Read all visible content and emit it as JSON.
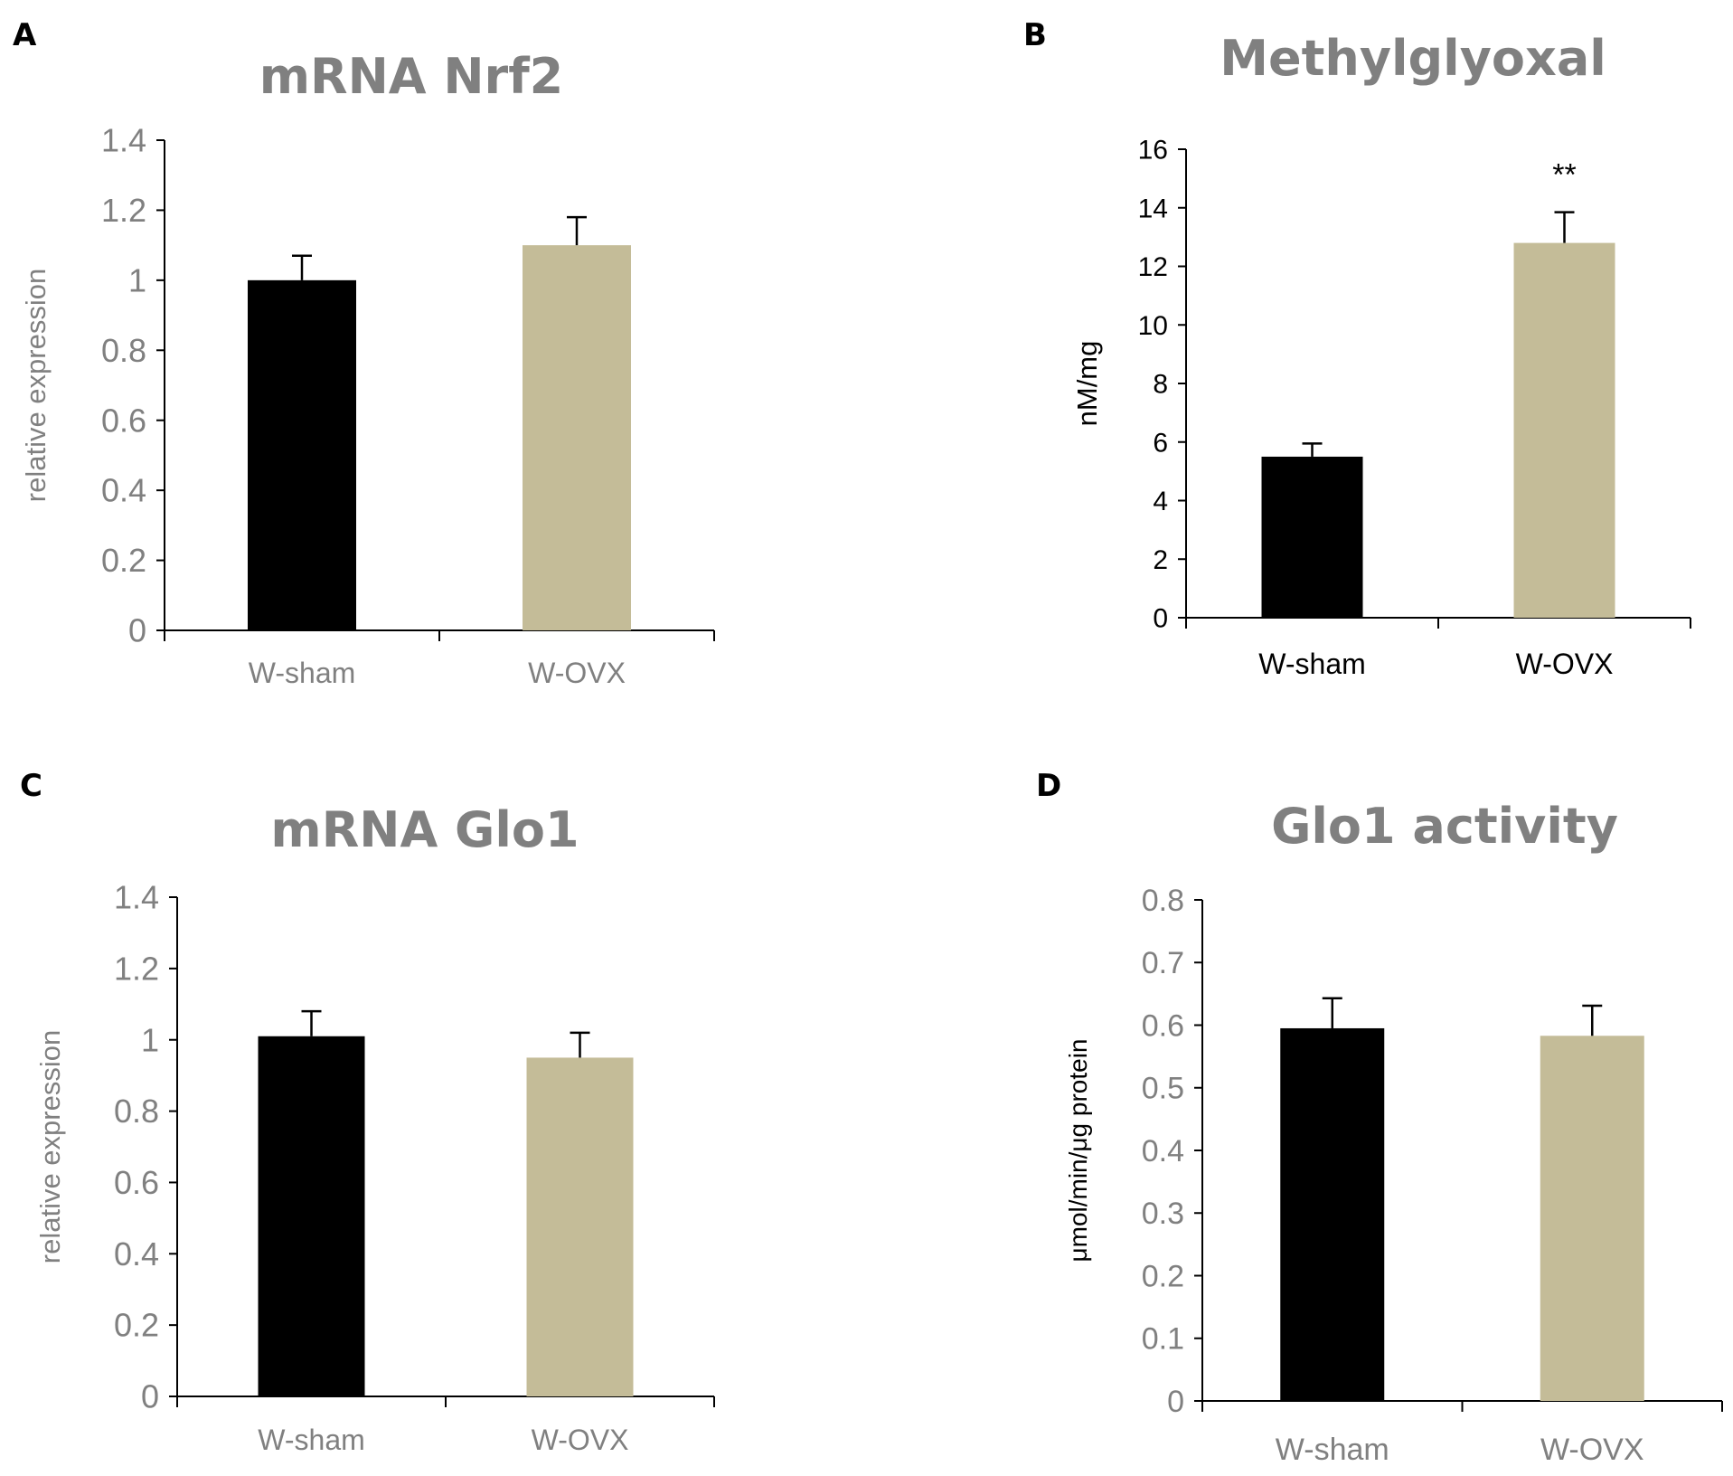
{
  "figure": {
    "panels": [
      "A",
      "B",
      "C",
      "D"
    ]
  },
  "colors": {
    "sham": "#000000",
    "ovx": "#c4bc98",
    "axis": "#000000",
    "gray_text": "#808080",
    "dark_text": "#000000"
  },
  "chart_data": [
    {
      "panel": "A",
      "type": "bar",
      "title": "mRNA Nrf2",
      "xlabel": "",
      "ylabel": "relative expression",
      "categories": [
        "W-sham",
        "W-OVX"
      ],
      "values": [
        1.0,
        1.1
      ],
      "errors": [
        0.07,
        0.08
      ],
      "ylim": [
        0,
        1.4
      ],
      "yticks": [
        "0",
        "0.2",
        "0.4",
        "0.6",
        "0.8",
        "1",
        "1.2",
        "1.4"
      ],
      "annotations": [
        "",
        ""
      ],
      "grid": false
    },
    {
      "panel": "B",
      "type": "bar",
      "title": "Methylglyoxal",
      "xlabel": "",
      "ylabel": "nM/mg",
      "categories": [
        "W-sham",
        "W-OVX"
      ],
      "values": [
        5.5,
        12.8
      ],
      "errors": [
        0.45,
        1.05
      ],
      "ylim": [
        0,
        16
      ],
      "yticks": [
        "0",
        "2",
        "4",
        "6",
        "8",
        "10",
        "12",
        "14",
        "16"
      ],
      "annotations": [
        "",
        "**"
      ],
      "grid": false
    },
    {
      "panel": "C",
      "type": "bar",
      "title": "mRNA Glo1",
      "xlabel": "",
      "ylabel": "relative expression",
      "categories": [
        "W-sham",
        "W-OVX"
      ],
      "values": [
        1.01,
        0.95
      ],
      "errors": [
        0.07,
        0.07
      ],
      "ylim": [
        0,
        1.4
      ],
      "yticks": [
        "0",
        "0.2",
        "0.4",
        "0.6",
        "0.8",
        "1",
        "1.2",
        "1.4"
      ],
      "annotations": [
        "",
        ""
      ],
      "grid": false
    },
    {
      "panel": "D",
      "type": "bar",
      "title": "Glo1 activity",
      "xlabel": "",
      "ylabel": "μmol/min/μg protein",
      "categories": [
        "W-sham",
        "W-OVX"
      ],
      "values": [
        0.595,
        0.583
      ],
      "errors": [
        0.048,
        0.048
      ],
      "ylim": [
        0,
        0.8
      ],
      "yticks": [
        "0",
        "0.1",
        "0.2",
        "0.3",
        "0.4",
        "0.5",
        "0.6",
        "0.7",
        "0.8"
      ],
      "annotations": [
        "",
        ""
      ],
      "grid": false
    }
  ]
}
